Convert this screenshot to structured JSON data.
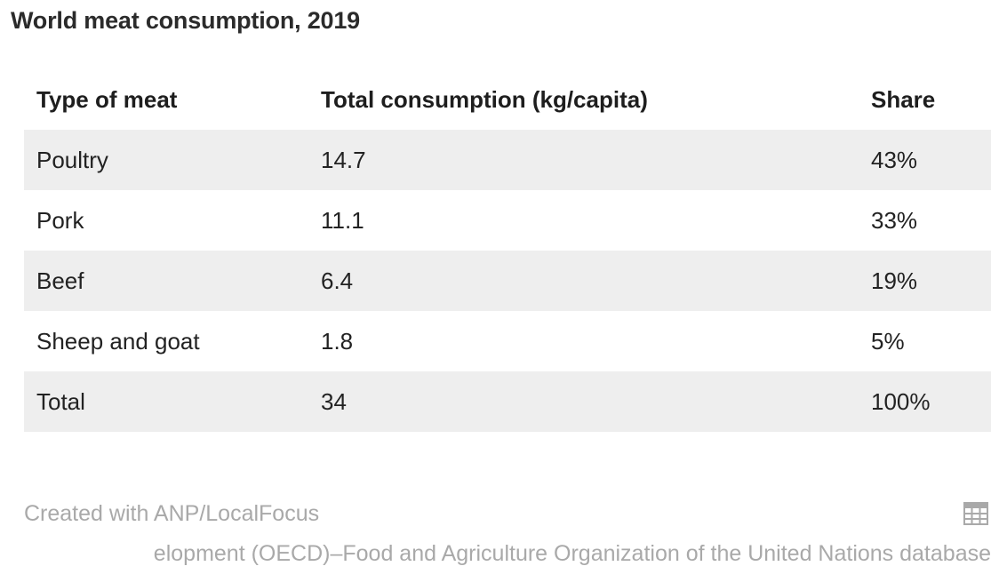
{
  "title": "World meat consumption, 2019",
  "chart_data": {
    "type": "table",
    "title": "World meat consumption, 2019",
    "columns": [
      "Type of meat",
      "Total consumption (kg/capita)",
      "Share"
    ],
    "rows": [
      {
        "type": "Poultry",
        "consumption": "14.7",
        "share": "43%"
      },
      {
        "type": "Pork",
        "consumption": "11.1",
        "share": "33%"
      },
      {
        "type": "Beef",
        "consumption": "6.4",
        "share": "19%"
      },
      {
        "type": "Sheep and goat",
        "consumption": "1.8",
        "share": "5%"
      },
      {
        "type": "Total",
        "consumption": "34",
        "share": "100%"
      }
    ]
  },
  "footer": {
    "credit": "Created with ANP/LocalFocus",
    "source_visible": "elopment (OECD)–Food and Agriculture Organization of the United Nations database",
    "icon": "table-icon"
  },
  "colors": {
    "shaded_row": "#eeeeee",
    "muted_text": "#a9a9a9"
  }
}
